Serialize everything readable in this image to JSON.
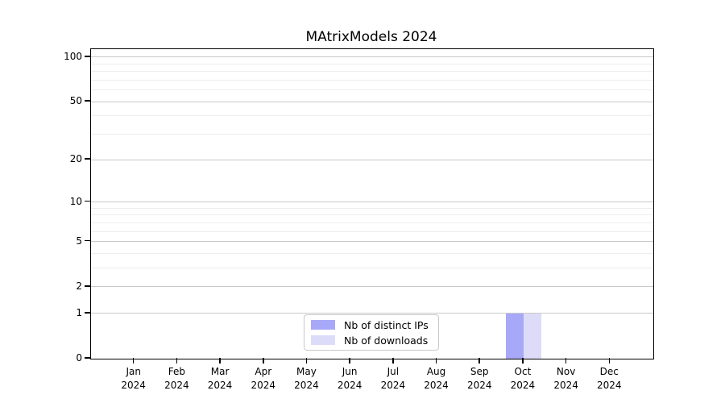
{
  "chart_data": {
    "type": "bar",
    "title": "MAtrixModels 2024",
    "categories": [
      "Jan 2024",
      "Feb 2024",
      "Mar 2024",
      "Apr 2024",
      "May 2024",
      "Jun 2024",
      "Jul 2024",
      "Aug 2024",
      "Sep 2024",
      "Oct 2024",
      "Nov 2024",
      "Dec 2024"
    ],
    "x_tick_top": [
      "Jan",
      "Feb",
      "Mar",
      "Apr",
      "May",
      "Jun",
      "Jul",
      "Aug",
      "Sep",
      "Oct",
      "Nov",
      "Dec"
    ],
    "x_tick_bottom": "2024",
    "series": [
      {
        "name": "Nb of distinct IPs",
        "color": "#a8a8f8",
        "values": [
          0,
          0,
          0,
          0,
          0,
          0,
          0,
          0,
          0,
          1,
          0,
          0
        ]
      },
      {
        "name": "Nb of downloads",
        "color": "#dcdcf9",
        "values": [
          0,
          0,
          0,
          0,
          0,
          0,
          0,
          0,
          0,
          1,
          0,
          0
        ]
      }
    ],
    "yscale": "log1p",
    "ylim": [
      0,
      113
    ],
    "y_major_ticks": [
      0,
      1,
      2,
      5,
      10,
      20,
      50,
      100
    ],
    "y_minor_gridlines": [
      3,
      4,
      6,
      7,
      8,
      9,
      30,
      40,
      60,
      70,
      80,
      90
    ],
    "grid": "horizontal",
    "legend_position": "bottom-center",
    "colors": {
      "major_grid": "#c9c9c9",
      "minor_grid": "#ededed",
      "axis": "#000000",
      "text": "#000000",
      "background": "#ffffff"
    }
  }
}
